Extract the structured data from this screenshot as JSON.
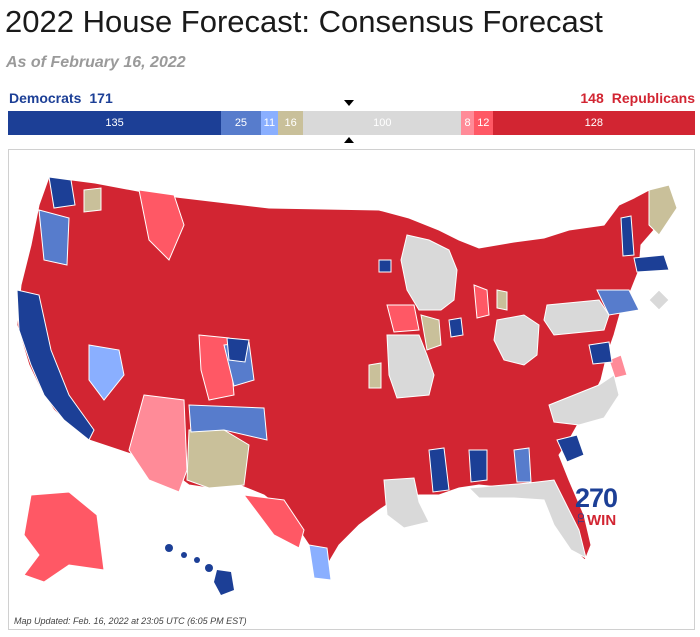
{
  "header": {
    "title": "2022 House Forecast: Consensus Forecast",
    "subtitle": "As of February 16, 2022"
  },
  "tally": {
    "dem_label": "Democrats",
    "dem_total": "171",
    "rep_total": "148",
    "rep_label": "Republicans"
  },
  "bar": {
    "segments": [
      {
        "key": "safe_dem",
        "value": 135,
        "label": "135",
        "color": "#1c3f96"
      },
      {
        "key": "likely_dem",
        "value": 25,
        "label": "25",
        "color": "#577ccc"
      },
      {
        "key": "lean_dem",
        "value": 11,
        "label": "11",
        "color": "#8aafff"
      },
      {
        "key": "tilt_dem",
        "value": 16,
        "label": "16",
        "color": "#c9c09a"
      },
      {
        "key": "tossup",
        "value": 100,
        "label": "100",
        "color": "#d9d9d9"
      },
      {
        "key": "lean_rep",
        "value": 8,
        "label": "8",
        "color": "#ff8b98"
      },
      {
        "key": "likely_rep",
        "value": 12,
        "label": "12",
        "color": "#ff5865"
      },
      {
        "key": "safe_rep",
        "value": 128,
        "label": "128",
        "color": "#d22532"
      }
    ]
  },
  "map": {
    "footnote": "Map Updated: Feb. 16, 2022 at 23:05 UTC (6:05 PM EST)",
    "logo_number": "270",
    "logo_to": "TO",
    "logo_win": "WIN",
    "colors": {
      "safe_rep": "#d22532",
      "likely_rep": "#ff5865",
      "lean_rep": "#ff8b98",
      "tossup": "#d9d9d9",
      "tilt": "#c9c09a",
      "lean_dem": "#8aafff",
      "likely_dem": "#577ccc",
      "safe_dem": "#1c3f96"
    }
  }
}
